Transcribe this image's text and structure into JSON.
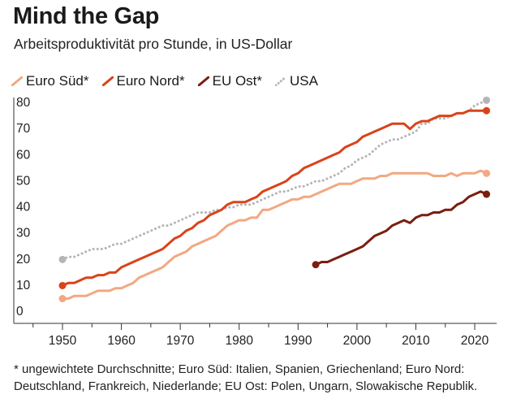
{
  "chart_data": {
    "type": "line",
    "title": "Mind the Gap",
    "subtitle": "Arbeitsproduktivität pro Stunde, in US-Dollar",
    "xlabel": "",
    "ylabel": "",
    "xlim": [
      1944,
      2024
    ],
    "ylim": [
      0,
      83
    ],
    "xticks": [
      1950,
      1960,
      1970,
      1980,
      1990,
      2000,
      2010,
      2020
    ],
    "yticks": [
      0,
      10,
      20,
      30,
      40,
      50,
      60,
      70,
      80
    ],
    "grid": false,
    "legend_position": "top-left",
    "series": [
      {
        "name": "Euro Süd*",
        "color": "#f2a882",
        "style": "solid",
        "x": [
          1950,
          1951,
          1952,
          1953,
          1954,
          1955,
          1956,
          1957,
          1958,
          1959,
          1960,
          1961,
          1962,
          1963,
          1964,
          1965,
          1966,
          1967,
          1968,
          1969,
          1970,
          1971,
          1972,
          1973,
          1974,
          1975,
          1976,
          1977,
          1978,
          1979,
          1980,
          1981,
          1982,
          1983,
          1984,
          1985,
          1986,
          1987,
          1988,
          1989,
          1990,
          1991,
          1992,
          1993,
          1994,
          1995,
          1996,
          1997,
          1998,
          1999,
          2000,
          2001,
          2002,
          2003,
          2004,
          2005,
          2006,
          2007,
          2008,
          2009,
          2010,
          2011,
          2012,
          2013,
          2014,
          2015,
          2016,
          2017,
          2018,
          2019,
          2020,
          2021,
          2022
        ],
        "values": [
          7,
          7,
          8,
          8,
          8,
          9,
          10,
          10,
          10,
          11,
          11,
          12,
          13,
          15,
          16,
          17,
          18,
          19,
          21,
          23,
          24,
          25,
          27,
          28,
          29,
          30,
          31,
          33,
          35,
          36,
          37,
          37,
          38,
          38,
          41,
          41,
          42,
          43,
          44,
          45,
          45,
          46,
          46,
          47,
          48,
          49,
          50,
          51,
          51,
          51,
          52,
          53,
          53,
          53,
          54,
          54,
          55,
          55,
          55,
          55,
          55,
          55,
          55,
          54,
          54,
          54,
          55,
          54,
          55,
          55,
          55,
          56,
          55
        ]
      },
      {
        "name": "Euro Nord*",
        "color": "#d9431a",
        "style": "solid",
        "x": [
          1950,
          1951,
          1952,
          1953,
          1954,
          1955,
          1956,
          1957,
          1958,
          1959,
          1960,
          1961,
          1962,
          1963,
          1964,
          1965,
          1966,
          1967,
          1968,
          1969,
          1970,
          1971,
          1972,
          1973,
          1974,
          1975,
          1976,
          1977,
          1978,
          1979,
          1980,
          1981,
          1982,
          1983,
          1984,
          1985,
          1986,
          1987,
          1988,
          1989,
          1990,
          1991,
          1992,
          1993,
          1994,
          1995,
          1996,
          1997,
          1998,
          1999,
          2000,
          2001,
          2002,
          2003,
          2004,
          2005,
          2006,
          2007,
          2008,
          2009,
          2010,
          2011,
          2012,
          2013,
          2014,
          2015,
          2016,
          2017,
          2018,
          2019,
          2020,
          2021,
          2022
        ],
        "values": [
          12,
          13,
          13,
          14,
          15,
          15,
          16,
          16,
          17,
          17,
          19,
          20,
          21,
          22,
          23,
          24,
          25,
          26,
          28,
          30,
          31,
          33,
          34,
          36,
          37,
          39,
          40,
          41,
          43,
          44,
          44,
          44,
          45,
          46,
          48,
          49,
          50,
          51,
          52,
          54,
          55,
          57,
          58,
          59,
          60,
          61,
          62,
          63,
          65,
          66,
          67,
          69,
          70,
          71,
          72,
          73,
          74,
          74,
          74,
          72,
          74,
          75,
          75,
          76,
          77,
          77,
          77,
          78,
          78,
          79,
          79,
          79,
          79
        ]
      },
      {
        "name": "EU Ost*",
        "color": "#7a1e10",
        "style": "solid",
        "x": [
          1993,
          1994,
          1995,
          1996,
          1997,
          1998,
          1999,
          2000,
          2001,
          2002,
          2003,
          2004,
          2005,
          2006,
          2007,
          2008,
          2009,
          2010,
          2011,
          2012,
          2013,
          2014,
          2015,
          2016,
          2017,
          2018,
          2019,
          2020,
          2021,
          2022
        ],
        "values": [
          20,
          21,
          21,
          22,
          23,
          24,
          25,
          26,
          27,
          29,
          31,
          32,
          33,
          35,
          36,
          37,
          36,
          38,
          39,
          39,
          40,
          40,
          41,
          41,
          43,
          44,
          46,
          47,
          48,
          47
        ]
      },
      {
        "name": "USA",
        "color": "#b5b5b5",
        "style": "dotted",
        "x": [
          1950,
          1951,
          1952,
          1953,
          1954,
          1955,
          1956,
          1957,
          1958,
          1959,
          1960,
          1961,
          1962,
          1963,
          1964,
          1965,
          1966,
          1967,
          1968,
          1969,
          1970,
          1971,
          1972,
          1973,
          1974,
          1975,
          1976,
          1977,
          1978,
          1979,
          1980,
          1981,
          1982,
          1983,
          1984,
          1985,
          1986,
          1987,
          1988,
          1989,
          1990,
          1991,
          1992,
          1993,
          1994,
          1995,
          1996,
          1997,
          1998,
          1999,
          2000,
          2001,
          2002,
          2003,
          2004,
          2005,
          2006,
          2007,
          2008,
          2009,
          2010,
          2011,
          2012,
          2013,
          2014,
          2015,
          2016,
          2017,
          2018,
          2019,
          2020,
          2021,
          2022
        ],
        "values": [
          22,
          23,
          23,
          24,
          25,
          26,
          26,
          26,
          27,
          28,
          28,
          29,
          30,
          31,
          32,
          33,
          34,
          35,
          35,
          36,
          37,
          38,
          39,
          40,
          40,
          40,
          41,
          41,
          42,
          42,
          43,
          43,
          43,
          44,
          45,
          46,
          47,
          48,
          48,
          49,
          50,
          50,
          51,
          52,
          52,
          53,
          54,
          55,
          57,
          58,
          60,
          61,
          62,
          64,
          66,
          67,
          68,
          68,
          69,
          70,
          71,
          74,
          74,
          76,
          76,
          76,
          77,
          78,
          78,
          79,
          81,
          82,
          83
        ]
      }
    ]
  },
  "footnote": "* ungewichtete Durchschnitte; Euro Süd: Italien, Spanien, Griechenland; Euro Nord: Deutschland, Frankreich, Niederlande; EU Ost: Polen, Ungarn, Slowakische Republik."
}
